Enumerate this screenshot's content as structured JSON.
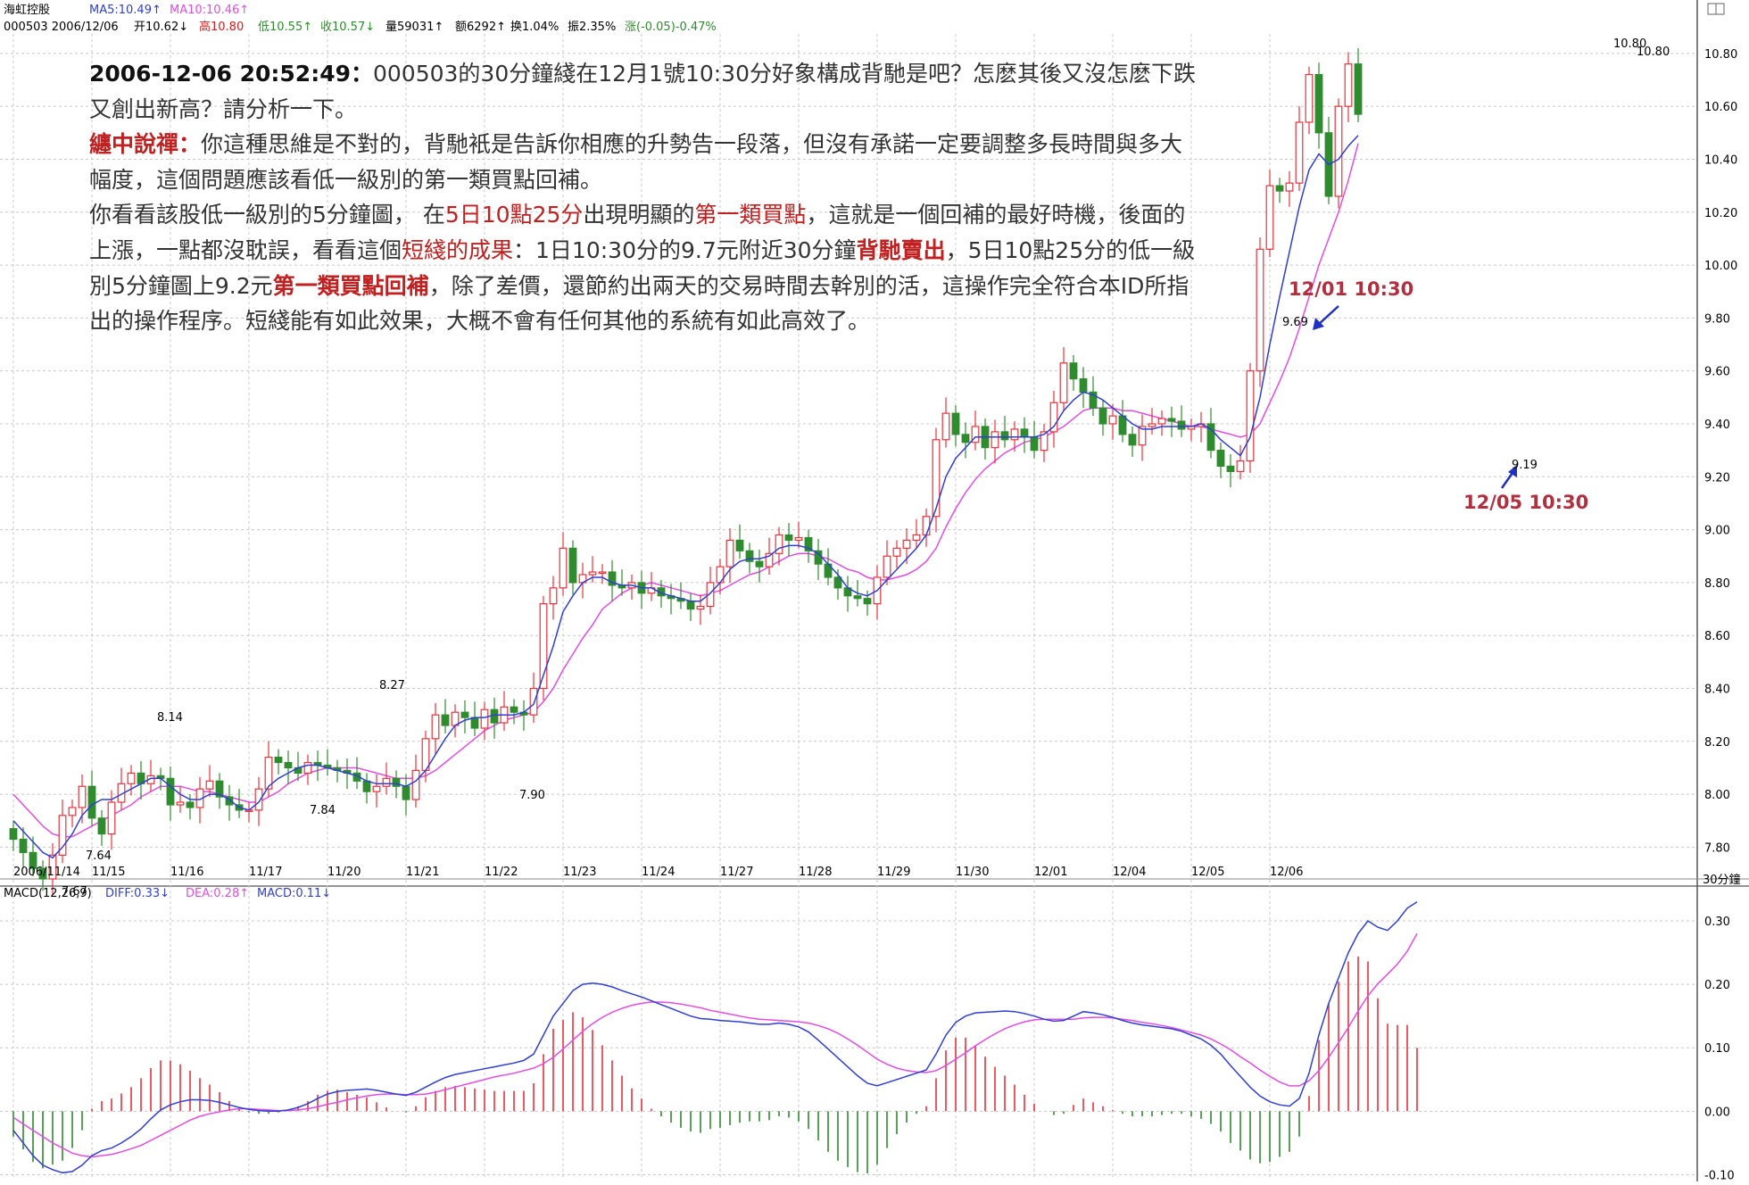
{
  "header": {
    "stock_name": "海虹控股",
    "ma5": "MA5:10.49↑",
    "ma10": "MA10:10.46↑",
    "code_date": "000503 2006/12/06",
    "open": "开10.62↓",
    "high": "高10.80",
    "low": "低10.55↑",
    "close": "收10.57↓",
    "volume": "量59031↑",
    "amount": "额6292↑",
    "turnover": "换1.04%",
    "amplitude": "振2.35%",
    "change": "涨(-0.05)-0.47%",
    "macd_title": "MACD(12,26,9)",
    "diff": "DIFF:0.33↓",
    "dea": "DEA:0.28↑",
    "macd": "MACD:0.11↓",
    "period": "30分鐘",
    "corner_icon": "pane-icon"
  },
  "note": {
    "p1_time": "2006-12-06 20:52:49：",
    "p1_text": "000503的30分鐘綫在12月1號10:30分好象構成背馳是吧？怎麽其後又沒怎麽下跌又創出新高？請分析一下。",
    "p2_name": "纏中說禪：",
    "p2_text": "你這種思維是不對的，背馳衹是告訴你相應的升勢告一段落，但沒有承諾一定要調整多長時間與多大幅度，這個問題應該看低一級別的第一類買點回補。",
    "p3_a": "你看看該股低一級別的5分鐘圖， 在",
    "p3_b": "5日10點25分",
    "p3_c": "出現明顯的",
    "p3_d": "第一類買點",
    "p3_e": "，這就是一個回補的最好時機，後面的上漲，一點都沒耽誤，看看這個",
    "p3_f": "短綫的成果",
    "p3_g": "：1日10:30分的9.7元附近30分鐘",
    "p3_h": "背馳賣出",
    "p3_i": "，5日10點25分的低一級別5分鐘圖上9.2元",
    "p3_j": "第一類買點回補",
    "p3_k": "，除了差價，還節約出兩天的交易時間去幹別的活，這操作完全符合本ID所指出的操作程序。短綫能有如此效果，大概不會有任何其他的系統有如此高效了。"
  },
  "annotations": {
    "a1": "12/01 10:30",
    "a2": "12/05 10:30",
    "lab_969": "9.69",
    "lab_919": "9.19",
    "lab_767": "7.67",
    "lab_764": "7.64",
    "lab_814": "8.14",
    "lab_784": "7.84",
    "lab_827": "8.27",
    "lab_790": "7.90",
    "lab_1080a": "10.80",
    "lab_1080b": "10.80"
  },
  "chart_data": [
    {
      "type": "candlestick",
      "ylim": [
        7.68,
        10.84
      ],
      "yticks": [
        7.8,
        8.0,
        8.2,
        8.4,
        8.6,
        8.8,
        9.0,
        9.2,
        9.4,
        9.6,
        9.8,
        10.0,
        10.2,
        10.4,
        10.6,
        10.8
      ],
      "ytick_labels": [
        "7.80",
        "8.00",
        "8.20",
        "8.40",
        "8.60",
        "8.80",
        "9.00",
        "9.20",
        "9.40",
        "9.60",
        "9.80",
        "10.00",
        "10.20",
        "10.40",
        "10.60",
        "10.80"
      ],
      "x_date_labels": [
        {
          "label": "2006/11/14",
          "bar": 0
        },
        {
          "label": "11/15",
          "bar": 8
        },
        {
          "label": "11/16",
          "bar": 16
        },
        {
          "label": "11/17",
          "bar": 24
        },
        {
          "label": "11/20",
          "bar": 32
        },
        {
          "label": "11/21",
          "bar": 40
        },
        {
          "label": "11/22",
          "bar": 48
        },
        {
          "label": "11/23",
          "bar": 56
        },
        {
          "label": "11/24",
          "bar": 64
        },
        {
          "label": "11/27",
          "bar": 72
        },
        {
          "label": "11/28",
          "bar": 80
        },
        {
          "label": "11/29",
          "bar": 88
        },
        {
          "label": "11/30",
          "bar": 96
        },
        {
          "label": "12/01",
          "bar": 104
        },
        {
          "label": "12/04",
          "bar": 112
        },
        {
          "label": "12/05",
          "bar": 120
        },
        {
          "label": "12/06",
          "bar": 128
        }
      ],
      "colors": {
        "up": "#e8323c",
        "down": "#2e8b2e",
        "ma5": "#2f3fd4",
        "ma10": "#e34ce3",
        "grid": "#c8c8c8"
      },
      "close": [
        7.83,
        7.78,
        7.72,
        7.68,
        7.77,
        7.92,
        7.95,
        8.03,
        7.91,
        7.85,
        7.97,
        8.04,
        8.08,
        8.04,
        8.07,
        8.06,
        7.96,
        7.97,
        7.95,
        8.02,
        8.05,
        7.99,
        7.96,
        7.94,
        7.94,
        8.02,
        8.14,
        8.12,
        8.1,
        8.08,
        8.12,
        8.11,
        8.1,
        8.09,
        8.08,
        8.05,
        8.01,
        8.03,
        8.06,
        8.03,
        7.98,
        8.09,
        8.21,
        8.3,
        8.26,
        8.31,
        8.29,
        8.25,
        8.32,
        8.27,
        8.33,
        8.31,
        8.3,
        8.4,
        8.72,
        8.78,
        8.93,
        8.8,
        8.83,
        8.84,
        8.84,
        8.79,
        8.78,
        8.8,
        8.76,
        8.78,
        8.75,
        8.74,
        8.73,
        8.7,
        8.71,
        8.8,
        8.86,
        8.96,
        8.92,
        8.88,
        8.86,
        8.91,
        8.98,
        8.96,
        8.97,
        8.92,
        8.87,
        8.82,
        8.78,
        8.75,
        8.74,
        8.72,
        8.82,
        8.9,
        8.93,
        8.96,
        8.98,
        9.05,
        9.34,
        9.44,
        9.36,
        9.33,
        9.39,
        9.31,
        9.37,
        9.34,
        9.38,
        9.35,
        9.3,
        9.37,
        9.48,
        9.63,
        9.57,
        9.52,
        9.46,
        9.4,
        9.43,
        9.36,
        9.32,
        9.39,
        9.4,
        9.42,
        9.41,
        9.38,
        9.39,
        9.4,
        9.3,
        9.24,
        9.22,
        9.26,
        9.6,
        10.06,
        10.3,
        10.28,
        10.31,
        10.54,
        10.72,
        10.5,
        10.26,
        10.6,
        10.76,
        10.57
      ],
      "ma5": [
        7.9,
        7.86,
        7.82,
        7.78,
        7.76,
        7.8,
        7.85,
        7.92,
        7.96,
        7.98,
        7.98,
        8.0,
        8.02,
        8.04,
        8.06,
        8.06,
        8.03,
        8.0,
        7.98,
        7.98,
        8.0,
        8.0,
        7.98,
        7.95,
        7.94,
        7.97,
        8.03,
        8.06,
        8.08,
        8.1,
        8.11,
        8.11,
        8.1,
        8.09,
        8.08,
        8.07,
        8.05,
        8.04,
        8.04,
        8.04,
        8.03,
        8.05,
        8.09,
        8.15,
        8.21,
        8.26,
        8.28,
        8.29,
        8.29,
        8.3,
        8.3,
        8.3,
        8.31,
        8.34,
        8.45,
        8.56,
        8.69,
        8.75,
        8.8,
        8.82,
        8.82,
        8.8,
        8.79,
        8.79,
        8.78,
        8.78,
        8.76,
        8.75,
        8.74,
        8.73,
        8.73,
        8.76,
        8.8,
        8.85,
        8.88,
        8.89,
        8.89,
        8.9,
        8.93,
        8.94,
        8.94,
        8.93,
        8.91,
        8.87,
        8.83,
        8.78,
        8.76,
        8.75,
        8.77,
        8.81,
        8.85,
        8.89,
        8.93,
        8.98,
        9.08,
        9.2,
        9.27,
        9.31,
        9.35,
        9.35,
        9.35,
        9.35,
        9.35,
        9.35,
        9.35,
        9.36,
        9.39,
        9.45,
        9.49,
        9.52,
        9.51,
        9.49,
        9.46,
        9.43,
        9.4,
        9.38,
        9.38,
        9.39,
        9.39,
        9.39,
        9.39,
        9.4,
        9.38,
        9.34,
        9.31,
        9.28,
        9.35,
        9.5,
        9.7,
        9.88,
        10.05,
        10.22,
        10.36,
        10.42,
        10.38,
        10.4,
        10.45,
        10.49
      ],
      "ma10": [
        8.0,
        7.96,
        7.92,
        7.88,
        7.85,
        7.84,
        7.84,
        7.86,
        7.88,
        7.9,
        7.92,
        7.94,
        7.96,
        7.99,
        8.01,
        8.03,
        8.03,
        8.03,
        8.02,
        8.01,
        8.01,
        8.0,
        7.99,
        7.98,
        7.97,
        7.97,
        7.99,
        8.01,
        8.04,
        8.06,
        8.08,
        8.09,
        8.1,
        8.1,
        8.1,
        8.1,
        8.09,
        8.08,
        8.07,
        8.06,
        8.06,
        8.06,
        8.07,
        8.09,
        8.12,
        8.15,
        8.18,
        8.21,
        8.24,
        8.26,
        8.28,
        8.29,
        8.3,
        8.31,
        8.35,
        8.4,
        8.47,
        8.53,
        8.59,
        8.64,
        8.7,
        8.73,
        8.76,
        8.78,
        8.79,
        8.8,
        8.79,
        8.78,
        8.77,
        8.76,
        8.75,
        8.76,
        8.77,
        8.79,
        8.81,
        8.83,
        8.84,
        8.86,
        8.88,
        8.9,
        8.91,
        8.91,
        8.9,
        8.89,
        8.87,
        8.85,
        8.84,
        8.82,
        8.81,
        8.81,
        8.82,
        8.83,
        8.85,
        8.88,
        8.93,
        9.01,
        9.08,
        9.14,
        9.19,
        9.23,
        9.26,
        9.29,
        9.31,
        9.33,
        9.34,
        9.35,
        9.37,
        9.39,
        9.42,
        9.45,
        9.46,
        9.46,
        9.46,
        9.45,
        9.45,
        9.44,
        9.43,
        9.42,
        9.41,
        9.4,
        9.39,
        9.39,
        9.38,
        9.37,
        9.36,
        9.35,
        9.36,
        9.4,
        9.48,
        9.56,
        9.65,
        9.76,
        9.88,
        10.0,
        10.1,
        10.2,
        10.32,
        10.46
      ]
    },
    {
      "type": "macd",
      "ylim": [
        -0.105,
        0.345
      ],
      "yticks": [
        -0.1,
        0.0,
        0.1,
        0.2,
        0.3
      ],
      "ytick_labels": [
        "-0.10",
        "0.00",
        "0.10",
        "0.20",
        "0.30"
      ],
      "colors": {
        "diff": "#2f3fd4",
        "dea": "#e34ce3",
        "pos": "#e8323c",
        "neg": "#2e8b2e"
      },
      "diff": [
        -0.03,
        -0.05,
        -0.07,
        -0.085,
        -0.092,
        -0.097,
        -0.095,
        -0.085,
        -0.07,
        -0.062,
        -0.058,
        -0.05,
        -0.04,
        -0.028,
        -0.012,
        0.002,
        0.01,
        0.015,
        0.018,
        0.018,
        0.017,
        0.014,
        0.01,
        0.006,
        0.003,
        0.001,
        0.0,
        0.0,
        0.002,
        0.006,
        0.012,
        0.02,
        0.027,
        0.031,
        0.033,
        0.034,
        0.035,
        0.033,
        0.03,
        0.027,
        0.025,
        0.03,
        0.038,
        0.046,
        0.053,
        0.058,
        0.061,
        0.064,
        0.067,
        0.07,
        0.073,
        0.076,
        0.08,
        0.09,
        0.12,
        0.15,
        0.17,
        0.19,
        0.2,
        0.202,
        0.2,
        0.196,
        0.19,
        0.185,
        0.18,
        0.174,
        0.168,
        0.162,
        0.156,
        0.15,
        0.146,
        0.145,
        0.143,
        0.142,
        0.141,
        0.139,
        0.137,
        0.137,
        0.139,
        0.137,
        0.133,
        0.125,
        0.112,
        0.098,
        0.084,
        0.07,
        0.056,
        0.044,
        0.04,
        0.045,
        0.05,
        0.055,
        0.06,
        0.065,
        0.09,
        0.12,
        0.14,
        0.15,
        0.155,
        0.156,
        0.157,
        0.158,
        0.157,
        0.154,
        0.15,
        0.145,
        0.142,
        0.143,
        0.15,
        0.157,
        0.155,
        0.152,
        0.148,
        0.143,
        0.139,
        0.136,
        0.134,
        0.132,
        0.13,
        0.126,
        0.12,
        0.114,
        0.104,
        0.09,
        0.072,
        0.055,
        0.038,
        0.024,
        0.015,
        0.01,
        0.008,
        0.02,
        0.06,
        0.12,
        0.17,
        0.21,
        0.25,
        0.28,
        0.3,
        0.29,
        0.285,
        0.3,
        0.32,
        0.33
      ],
      "dea": [
        -0.01,
        -0.02,
        -0.03,
        -0.04,
        -0.05,
        -0.058,
        -0.066,
        -0.07,
        -0.072,
        -0.07,
        -0.068,
        -0.064,
        -0.059,
        -0.054,
        -0.046,
        -0.038,
        -0.03,
        -0.022,
        -0.014,
        -0.008,
        -0.004,
        -0.001,
        0.002,
        0.004,
        0.004,
        0.003,
        0.002,
        0.001,
        0.001,
        0.002,
        0.004,
        0.007,
        0.011,
        0.014,
        0.018,
        0.021,
        0.024,
        0.026,
        0.027,
        0.027,
        0.026,
        0.026,
        0.027,
        0.03,
        0.034,
        0.038,
        0.042,
        0.046,
        0.05,
        0.054,
        0.057,
        0.06,
        0.064,
        0.068,
        0.075,
        0.085,
        0.098,
        0.112,
        0.126,
        0.138,
        0.148,
        0.156,
        0.162,
        0.167,
        0.17,
        0.172,
        0.172,
        0.171,
        0.169,
        0.166,
        0.163,
        0.159,
        0.156,
        0.153,
        0.15,
        0.147,
        0.145,
        0.144,
        0.143,
        0.142,
        0.141,
        0.139,
        0.135,
        0.13,
        0.123,
        0.114,
        0.104,
        0.093,
        0.082,
        0.074,
        0.068,
        0.064,
        0.062,
        0.061,
        0.064,
        0.072,
        0.082,
        0.092,
        0.103,
        0.113,
        0.122,
        0.13,
        0.136,
        0.141,
        0.144,
        0.145,
        0.145,
        0.145,
        0.145,
        0.147,
        0.148,
        0.148,
        0.147,
        0.145,
        0.143,
        0.14,
        0.138,
        0.135,
        0.132,
        0.128,
        0.124,
        0.12,
        0.114,
        0.106,
        0.097,
        0.086,
        0.076,
        0.065,
        0.055,
        0.046,
        0.04,
        0.04,
        0.048,
        0.064,
        0.085,
        0.108,
        0.132,
        0.158,
        0.182,
        0.201,
        0.216,
        0.232,
        0.252,
        0.28
      ]
    }
  ]
}
